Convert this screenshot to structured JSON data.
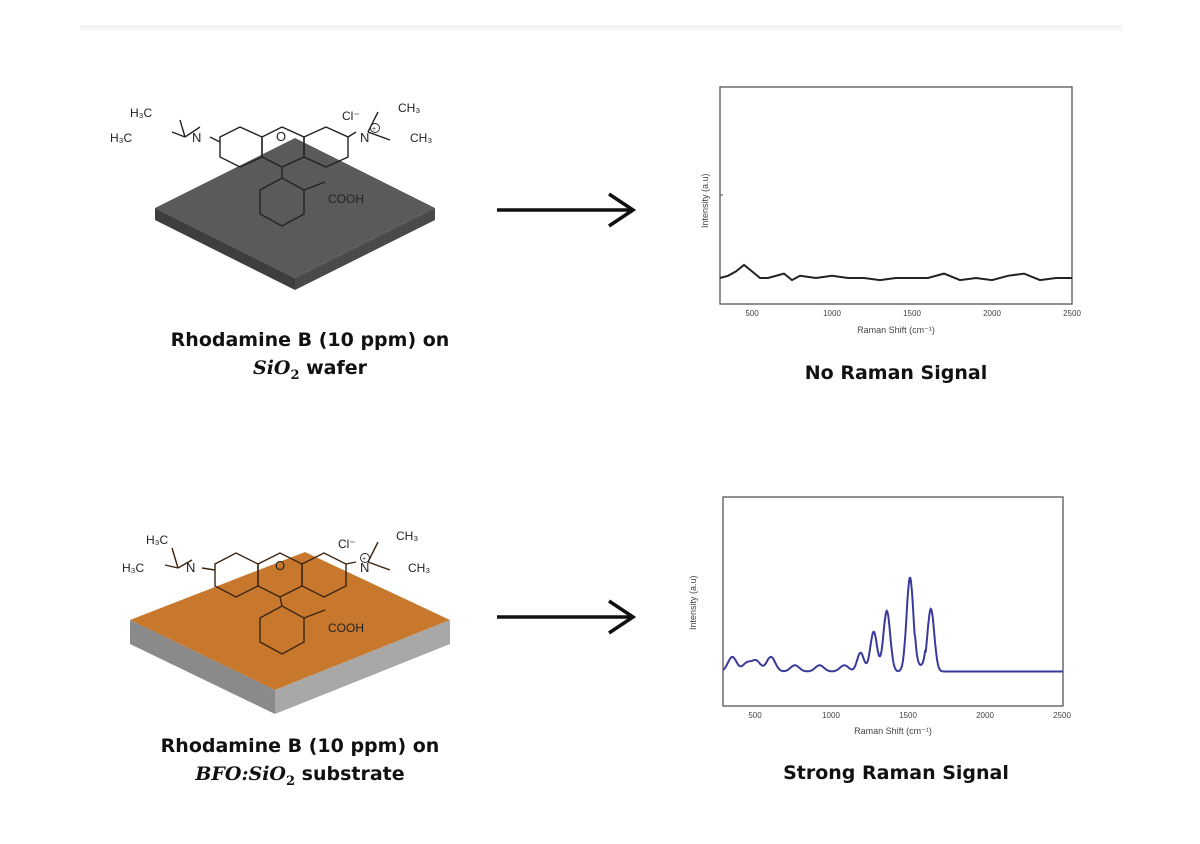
{
  "rows": [
    {
      "substrate_label_line1": "Rhodamine B (10 ppm) on",
      "substrate_math": "SiO",
      "substrate_math_sub": "2",
      "substrate_suffix": " wafer",
      "substrate_color": "#555555",
      "result_label": "No Raman Signal",
      "arrow": "right-arrow"
    },
    {
      "substrate_label_line1": "Rhodamine B (10 ppm) on",
      "substrate_math_prefix": "BFO",
      "substrate_math_colon": ":",
      "substrate_math": "SiO",
      "substrate_math_sub": "2",
      "substrate_suffix": " substrate",
      "substrate_color": "#c8782c",
      "result_label": "Strong Raman Signal",
      "arrow": "right-arrow"
    }
  ],
  "molecule": {
    "left_top": "H₃C",
    "left_bottom": "H₃C",
    "n_left": "N",
    "oxygen": "O",
    "chloride": "Cl⁻",
    "n_right": "N",
    "plus": "+",
    "right_top": "CH₃",
    "right_bottom": "CH₃",
    "acid": "COOH"
  },
  "chart_data": [
    {
      "type": "line",
      "title": "No Raman Signal",
      "xlabel": "Raman Shift (cm⁻¹)",
      "ylabel": "Intensity (a.u)",
      "xlim": [
        300,
        2500
      ],
      "xticks": [
        "500",
        "1000",
        "1500",
        "2000",
        "2500"
      ],
      "line_color": "#222222",
      "grid": false,
      "series": [
        {
          "name": "Rhodamine B on SiO2",
          "x": [
            300,
            350,
            400,
            450,
            500,
            550,
            600,
            700,
            750,
            800,
            900,
            1000,
            1100,
            1200,
            1300,
            1400,
            1500,
            1600,
            1700,
            1800,
            1900,
            2000,
            2100,
            2200,
            2300,
            2400,
            2500
          ],
          "y": [
            0.12,
            0.13,
            0.15,
            0.18,
            0.15,
            0.12,
            0.12,
            0.14,
            0.11,
            0.13,
            0.12,
            0.13,
            0.12,
            0.12,
            0.11,
            0.12,
            0.12,
            0.12,
            0.14,
            0.11,
            0.12,
            0.11,
            0.13,
            0.14,
            0.11,
            0.12,
            0.12
          ]
        }
      ]
    },
    {
      "type": "line",
      "title": "Strong Raman Signal",
      "xlabel": "Raman Shift (cm⁻¹)",
      "ylabel": "Intensity (a.u)",
      "xlim": [
        300,
        2500
      ],
      "xticks": [
        "500",
        "1000",
        "1500",
        "2000",
        "2500"
      ],
      "line_color": "#3a3a9a",
      "grid": false,
      "peaks": [
        {
          "x": 360,
          "height": 0.07
        },
        {
          "x": 455,
          "height": 0.04
        },
        {
          "x": 515,
          "height": 0.05
        },
        {
          "x": 610,
          "height": 0.07
        },
        {
          "x": 765,
          "height": 0.03
        },
        {
          "x": 925,
          "height": 0.03
        },
        {
          "x": 1085,
          "height": 0.03
        },
        {
          "x": 1190,
          "height": 0.09
        },
        {
          "x": 1275,
          "height": 0.19
        },
        {
          "x": 1360,
          "height": 0.29
        },
        {
          "x": 1510,
          "height": 0.45
        },
        {
          "x": 1645,
          "height": 0.3
        }
      ]
    }
  ]
}
